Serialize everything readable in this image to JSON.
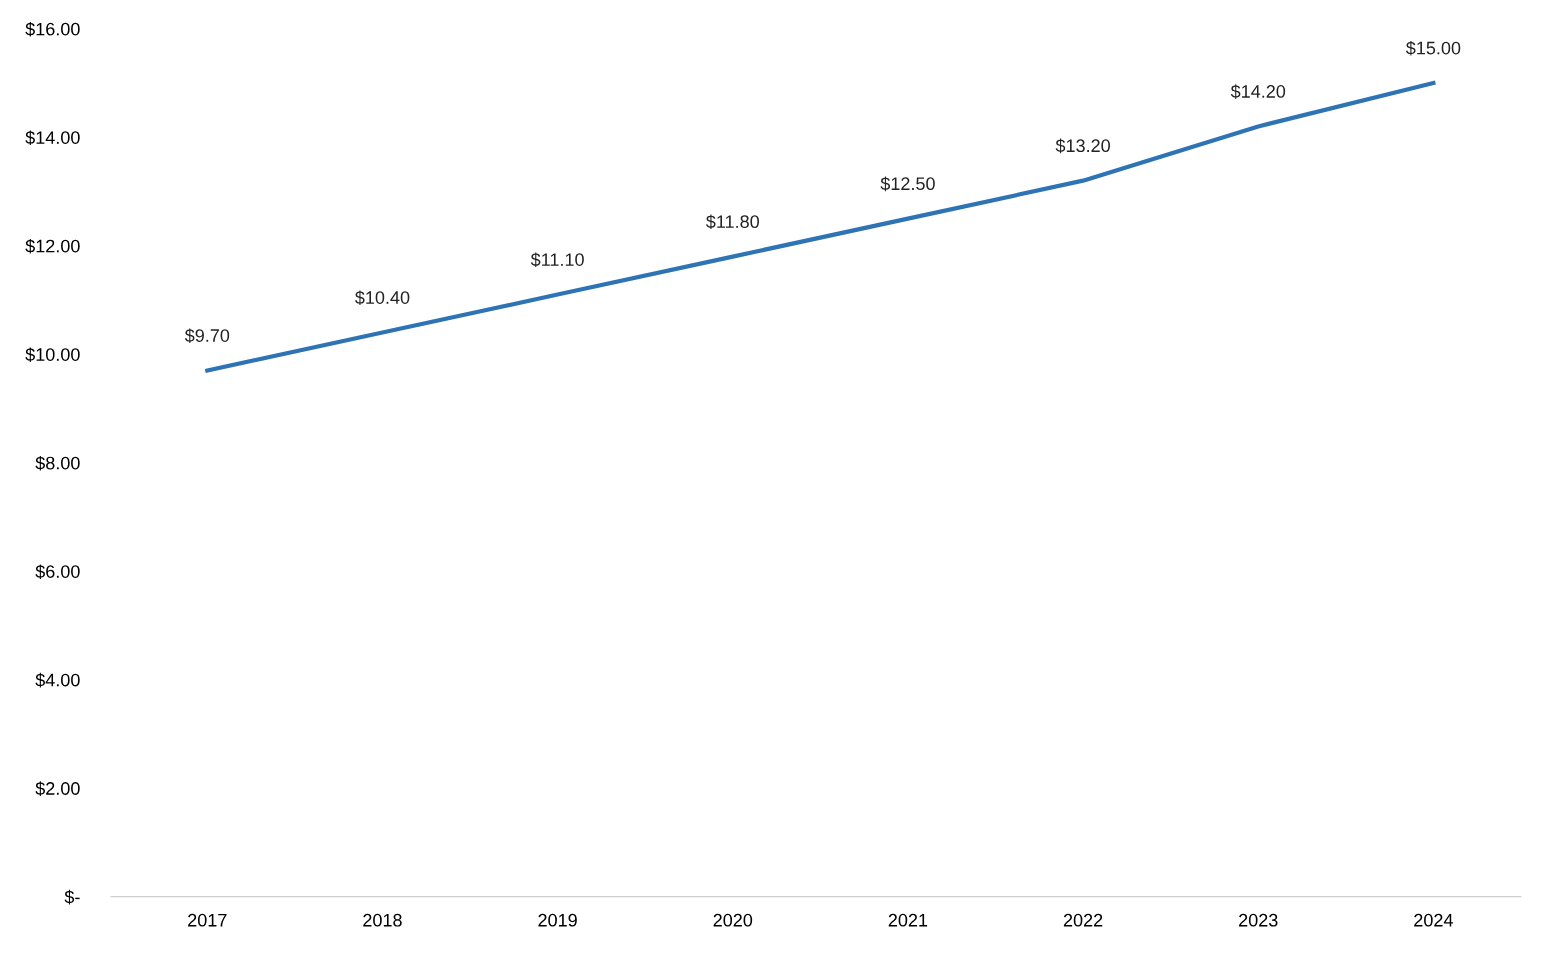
{
  "chart_data": {
    "type": "line",
    "categories": [
      "2017",
      "2018",
      "2019",
      "2020",
      "2021",
      "2022",
      "2023",
      "2024"
    ],
    "series": [
      {
        "color": "#2e74b5",
        "values": [
          9.7,
          10.4,
          11.1,
          11.8,
          12.5,
          13.2,
          14.2,
          15.0
        ],
        "value_labels": [
          "$9.70",
          "$10.40",
          "$11.10",
          "$11.80",
          "$12.50",
          "$13.20",
          "$14.20",
          "$15.00"
        ]
      }
    ],
    "ylim": [
      0,
      16
    ],
    "yticks": [
      {
        "value": 0,
        "label": "$-"
      },
      {
        "value": 2,
        "label": "$2.00"
      },
      {
        "value": 4,
        "label": "$4.00"
      },
      {
        "value": 6,
        "label": "$6.00"
      },
      {
        "value": 8,
        "label": "$8.00"
      },
      {
        "value": 10,
        "label": "$10.00"
      },
      {
        "value": 12,
        "label": "$12.00"
      },
      {
        "value": 14,
        "label": "$14.00"
      },
      {
        "value": 16,
        "label": "$16.00"
      }
    ],
    "grid": false,
    "marker": "none",
    "line_style": "solid"
  }
}
